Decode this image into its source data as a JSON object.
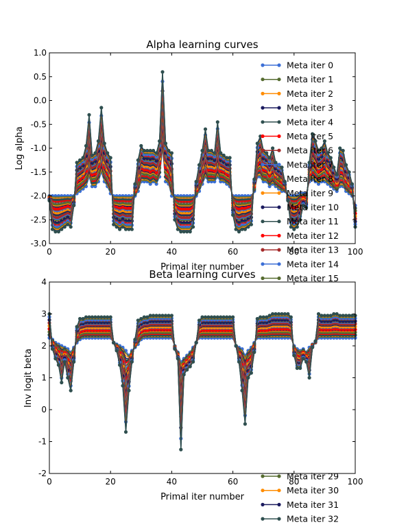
{
  "palette": [
    "#3c6fd6",
    "#556b2f",
    "#ff8c00",
    "#1a1a5e",
    "#2f4f4f",
    "#ff0000",
    "#a52a2a"
  ],
  "legend_layout": {
    "entries": [
      "Meta iter 0",
      "Meta iter 1",
      "Meta iter 2",
      "Meta iter 3",
      "Meta iter 4",
      "Meta iter 5",
      "Meta iter 6",
      "Meta iter 7",
      "Meta iter 8",
      "Meta iter 9",
      "Meta iter 10",
      "Meta iter 11",
      "Meta iter 12",
      "Meta iter 13",
      "Meta iter 14",
      "Meta iter 15"
    ],
    "entries_bottom": [
      "Meta iter 29",
      "Meta iter 30",
      "Meta iter 31",
      "Meta iter 32"
    ]
  },
  "chart_data": [
    {
      "type": "line",
      "title": "Alpha learning curves",
      "xlabel": "Primal iter number",
      "ylabel": "Log alpha",
      "xlim": [
        0,
        100
      ],
      "ylim": [
        -3.0,
        1.0
      ],
      "xticks": [
        "0",
        "20",
        "40",
        "60",
        "80",
        "100"
      ],
      "yticks": [
        "-3.0",
        "-2.5",
        "-2.0",
        "-1.5",
        "-1.0",
        "-0.5",
        "0.0",
        "0.5",
        "1.0"
      ],
      "grid": false,
      "legend_position": "upper-right",
      "series_count": 33,
      "x": [
        0,
        1,
        2,
        3,
        4,
        5,
        6,
        7,
        8,
        9,
        10,
        11,
        12,
        13,
        14,
        15,
        16,
        17,
        18,
        19,
        20,
        21,
        22,
        23,
        24,
        25,
        26,
        27,
        28,
        29,
        30,
        31,
        32,
        33,
        34,
        35,
        36,
        37,
        38,
        39,
        40,
        41,
        42,
        43,
        44,
        45,
        46,
        47,
        48,
        49,
        50,
        51,
        52,
        53,
        54,
        55,
        56,
        57,
        58,
        59,
        60,
        61,
        62,
        63,
        64,
        65,
        66,
        67,
        68,
        69,
        70,
        71,
        72,
        73,
        74,
        75,
        76,
        77,
        78,
        79,
        80,
        81,
        82,
        83,
        84,
        85,
        86,
        87,
        88,
        89,
        90,
        91,
        92,
        93,
        94,
        95,
        96,
        97,
        98,
        99,
        100
      ],
      "first_series_values": [
        -2.0,
        -2.0,
        -2.0,
        -2.0,
        -2.0,
        -2.0,
        -2.0,
        -2.0,
        -2.0,
        -1.95,
        -1.9,
        -1.85,
        -1.8,
        -1.6,
        -1.8,
        -1.8,
        -1.7,
        -1.5,
        -1.7,
        -1.8,
        -1.95,
        -2.0,
        -2.0,
        -2.0,
        -2.0,
        -2.0,
        -2.0,
        -2.0,
        -2.0,
        -1.9,
        -1.7,
        -1.7,
        -1.7,
        -1.75,
        -1.7,
        -1.75,
        -1.6,
        -1.0,
        -1.7,
        -1.75,
        -2.0,
        -2.0,
        -2.0,
        -2.0,
        -2.0,
        -2.0,
        -2.0,
        -2.0,
        -2.0,
        -1.9,
        -1.75,
        -1.6,
        -1.7,
        -1.7,
        -1.7,
        -1.6,
        -1.7,
        -1.7,
        -1.75,
        -1.8,
        -2.0,
        -2.0,
        -2.0,
        -2.0,
        -2.0,
        -2.0,
        -2.0,
        -1.9,
        -1.6,
        -1.6,
        -1.7,
        -1.7,
        -1.8,
        -1.75,
        -1.8,
        -1.85,
        -1.9,
        -1.9,
        -2.0,
        -2.0,
        -2.0,
        -2.0,
        -1.95,
        -1.95,
        -1.95,
        -1.7,
        -1.65,
        -1.7,
        -1.75,
        -1.7,
        -1.7,
        -1.75,
        -1.8,
        -1.85,
        -1.9,
        -1.8,
        -1.8,
        -1.9,
        -1.95,
        -2.0,
        -2.2
      ],
      "last_series_values": [
        -2.1,
        -2.7,
        -2.75,
        -2.75,
        -2.7,
        -2.65,
        -2.6,
        -2.65,
        -2.2,
        -1.3,
        -1.25,
        -1.2,
        -0.95,
        -0.3,
        -1.15,
        -1.1,
        -0.85,
        -0.15,
        -0.9,
        -1.1,
        -1.2,
        -2.6,
        -2.65,
        -2.7,
        -2.65,
        -2.7,
        -2.7,
        -2.7,
        -1.75,
        -1.25,
        -0.95,
        -1.05,
        -1.05,
        -1.05,
        -1.05,
        -1.1,
        -0.85,
        0.6,
        -0.9,
        -1.05,
        -1.1,
        -2.5,
        -2.7,
        -2.75,
        -2.75,
        -2.75,
        -2.75,
        -2.65,
        -1.7,
        -1.35,
        -1.05,
        -0.6,
        -1.05,
        -1.05,
        -1.1,
        -0.45,
        -1.1,
        -1.15,
        -1.2,
        -1.2,
        -2.4,
        -2.7,
        -2.75,
        -2.7,
        -2.7,
        -2.65,
        -2.6,
        -1.65,
        -0.9,
        -0.75,
        -1.05,
        -1.1,
        -1.2,
        -1.0,
        -1.3,
        -1.35,
        -1.4,
        -1.7,
        -2.1,
        -2.65,
        -2.7,
        -2.65,
        -2.5,
        -2.2,
        -2.25,
        -1.3,
        -0.7,
        -0.85,
        -1.05,
        -1.0,
        -0.85,
        -1.1,
        -1.2,
        -1.4,
        -1.55,
        -1.0,
        -1.05,
        -1.35,
        -1.5,
        -1.75,
        -2.65
      ]
    },
    {
      "type": "line",
      "title": "Beta learning curves",
      "xlabel": "Primal iter number",
      "ylabel": "Inv logit beta",
      "xlim": [
        0,
        100
      ],
      "ylim": [
        -2,
        4
      ],
      "xticks": [
        "0",
        "20",
        "40",
        "60",
        "80",
        "100"
      ],
      "yticks": [
        "-2",
        "-1",
        "0",
        "1",
        "2",
        "3",
        "4"
      ],
      "grid": false,
      "series_count": 33,
      "x": [
        0,
        1,
        2,
        3,
        4,
        5,
        6,
        7,
        8,
        9,
        10,
        11,
        12,
        13,
        14,
        15,
        16,
        17,
        18,
        19,
        20,
        21,
        22,
        23,
        24,
        25,
        26,
        27,
        28,
        29,
        30,
        31,
        32,
        33,
        34,
        35,
        36,
        37,
        38,
        39,
        40,
        41,
        42,
        43,
        44,
        45,
        46,
        47,
        48,
        49,
        50,
        51,
        52,
        53,
        54,
        55,
        56,
        57,
        58,
        59,
        60,
        61,
        62,
        63,
        64,
        65,
        66,
        67,
        68,
        69,
        70,
        71,
        72,
        73,
        74,
        75,
        76,
        77,
        78,
        79,
        80,
        81,
        82,
        83,
        84,
        85,
        86,
        87,
        88,
        89,
        90,
        91,
        92,
        93,
        94,
        95,
        96,
        97,
        98,
        99,
        100
      ],
      "first_series_values": [
        2.25,
        2.2,
        2.1,
        2.05,
        2.0,
        1.95,
        1.9,
        1.8,
        1.95,
        2.1,
        2.2,
        2.25,
        2.25,
        2.25,
        2.25,
        2.25,
        2.25,
        2.25,
        2.25,
        2.25,
        2.25,
        2.1,
        2.05,
        2.0,
        1.95,
        1.85,
        1.7,
        1.85,
        1.95,
        2.05,
        2.2,
        2.25,
        2.25,
        2.25,
        2.25,
        2.25,
        2.25,
        2.25,
        2.25,
        2.25,
        2.25,
        2.0,
        1.8,
        1.5,
        1.6,
        1.7,
        1.8,
        1.95,
        2.1,
        2.25,
        2.25,
        2.25,
        2.25,
        2.25,
        2.25,
        2.25,
        2.25,
        2.25,
        2.25,
        2.25,
        2.25,
        2.0,
        1.95,
        1.9,
        1.7,
        1.85,
        1.95,
        2.1,
        2.25,
        2.25,
        2.25,
        2.25,
        2.25,
        2.25,
        2.25,
        2.25,
        2.25,
        2.25,
        2.25,
        2.25,
        2.0,
        1.9,
        1.85,
        1.9,
        1.8,
        1.95,
        2.05,
        2.1,
        2.25,
        2.25,
        2.25,
        2.25,
        2.25,
        2.25,
        2.25,
        2.25,
        2.25,
        2.25,
        2.25,
        2.25,
        2.25
      ],
      "last_series_values": [
        3.0,
        1.9,
        1.6,
        1.4,
        0.85,
        1.5,
        1.0,
        0.6,
        1.5,
        2.6,
        2.85,
        2.85,
        2.9,
        2.9,
        2.9,
        2.9,
        2.9,
        2.9,
        2.9,
        2.9,
        2.9,
        2.1,
        1.85,
        1.4,
        0.75,
        -0.7,
        0.6,
        1.5,
        2.2,
        2.8,
        2.85,
        2.9,
        2.9,
        2.95,
        2.95,
        2.95,
        2.95,
        2.95,
        2.95,
        2.95,
        2.95,
        1.9,
        1.6,
        -1.25,
        1.1,
        1.25,
        1.35,
        1.5,
        2.1,
        2.8,
        2.9,
        2.9,
        2.9,
        2.9,
        2.9,
        2.9,
        2.9,
        2.9,
        2.9,
        2.9,
        2.9,
        2.0,
        1.5,
        0.6,
        -0.45,
        1.0,
        1.15,
        1.8,
        2.85,
        2.9,
        2.9,
        2.9,
        2.95,
        3.0,
        3.0,
        3.0,
        3.0,
        3.0,
        3.0,
        2.9,
        1.7,
        1.3,
        1.3,
        1.6,
        1.5,
        1.0,
        1.95,
        2.15,
        3.0,
        2.95,
        2.95,
        2.95,
        2.95,
        3.0,
        3.0,
        2.95,
        2.95,
        2.95,
        2.95,
        2.95,
        2.95
      ]
    }
  ]
}
